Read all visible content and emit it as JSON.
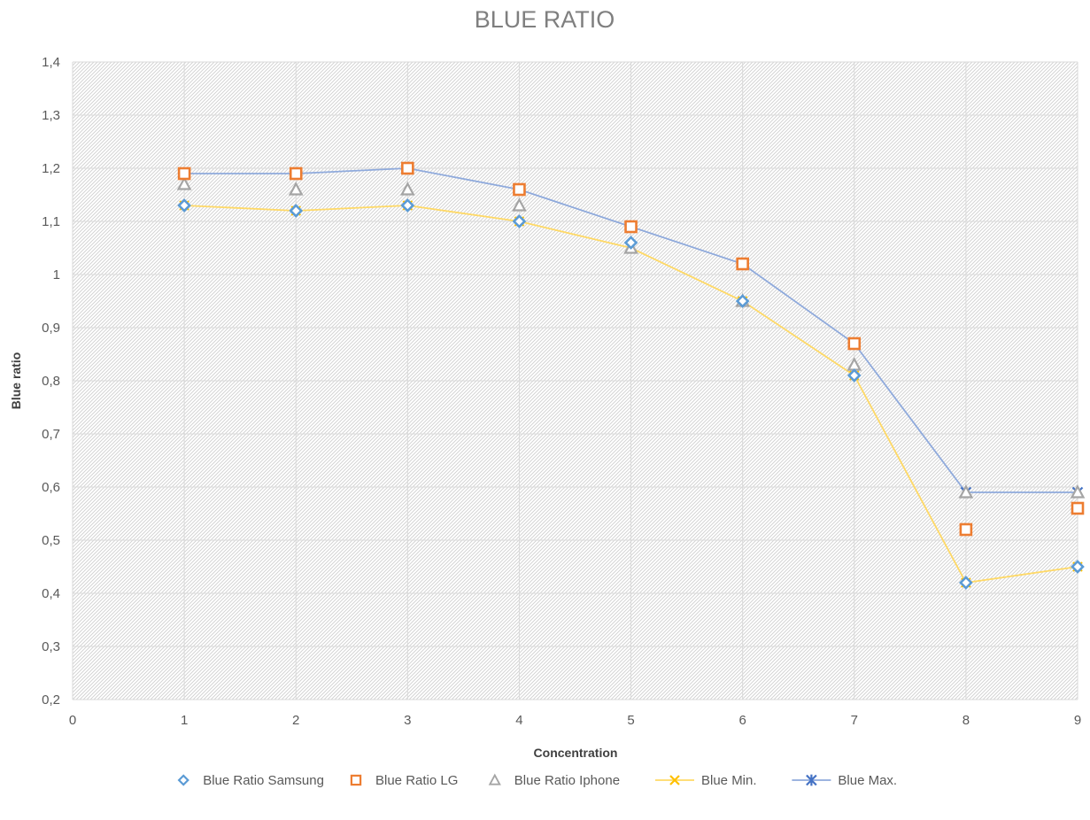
{
  "chart_data": {
    "type": "scatter",
    "title": "BLUE RATIO",
    "xlabel": "Concentration",
    "ylabel": "Blue ratio",
    "xlim": [
      0,
      9
    ],
    "ylim": [
      0.2,
      1.4
    ],
    "x_ticks": [
      0,
      1,
      2,
      3,
      4,
      5,
      6,
      7,
      8,
      9
    ],
    "y_ticks": [
      0.2,
      0.3,
      0.4,
      0.5,
      0.6,
      0.7,
      0.8,
      0.9,
      1.0,
      1.1,
      1.2,
      1.3,
      1.4
    ],
    "x_tick_labels": [
      "0",
      "1",
      "2",
      "3",
      "4",
      "5",
      "6",
      "7",
      "8",
      "9"
    ],
    "y_tick_labels": [
      "0,2",
      "0,3",
      "0,4",
      "0,5",
      "0,6",
      "0,7",
      "0,8",
      "0,9",
      "1",
      "1,1",
      "1,2",
      "1,3",
      "1,4"
    ],
    "grid": true,
    "legend_position": "bottom",
    "x": [
      1,
      2,
      3,
      4,
      5,
      6,
      7,
      8,
      9
    ],
    "series": [
      {
        "name": "Blue Ratio Samsung",
        "marker": "diamond",
        "line": false,
        "color": "#5b9bd5",
        "values": [
          1.13,
          1.12,
          1.13,
          1.1,
          1.06,
          0.95,
          0.81,
          0.42,
          0.45
        ]
      },
      {
        "name": "Blue Ratio LG",
        "marker": "square",
        "line": false,
        "color": "#ed7d31",
        "values": [
          1.19,
          1.19,
          1.2,
          1.16,
          1.09,
          1.02,
          0.87,
          0.52,
          0.56
        ]
      },
      {
        "name": "Blue Ratio Iphone",
        "marker": "triangle",
        "line": false,
        "color": "#a5a5a5",
        "values": [
          1.17,
          1.16,
          1.16,
          1.13,
          1.05,
          0.95,
          0.83,
          0.59,
          0.59
        ]
      },
      {
        "name": "Blue Min.",
        "marker": "x",
        "line": true,
        "color": "#ffc000",
        "line_color": "#ffd966",
        "values": [
          1.13,
          1.12,
          1.13,
          1.1,
          1.05,
          0.95,
          0.81,
          0.42,
          0.45
        ]
      },
      {
        "name": "Blue Max.",
        "marker": "star",
        "line": true,
        "color": "#4472c4",
        "line_color": "#8faadc",
        "values": [
          1.19,
          1.19,
          1.2,
          1.16,
          1.09,
          1.02,
          0.87,
          0.59,
          0.59
        ]
      }
    ]
  }
}
